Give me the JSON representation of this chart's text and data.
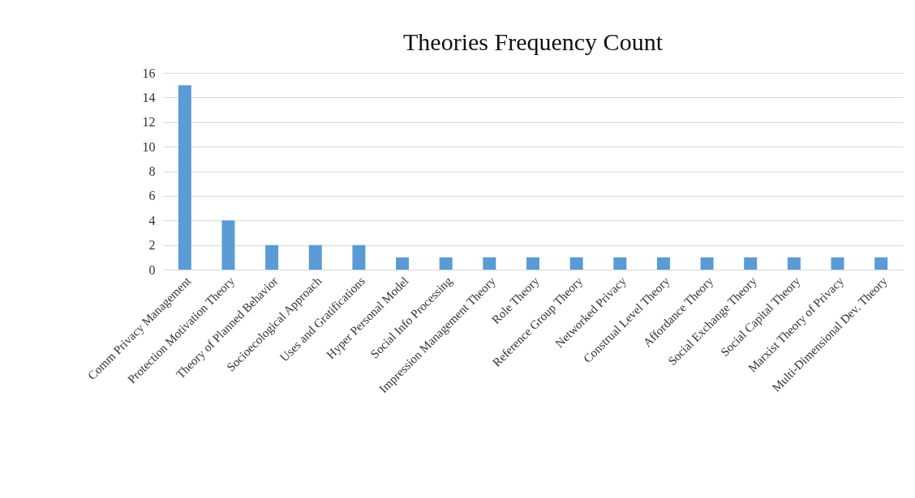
{
  "chart_data": {
    "type": "bar",
    "title": "Theories Frequency Count",
    "categories": [
      "Comm Privacy Management",
      "Protection Motivation Theory",
      "Theory of Planned Behavior",
      "Socioecological Approach",
      "Uses and Gratifications",
      "Hyper Personal Model",
      "Social Info Processing",
      "Impression Management Theory",
      "Role Theory",
      "Reference Group Theory",
      "Networked Privacy",
      "Construal Level Theory",
      "Affordance Theory",
      "Social Exchange Theory",
      "Social Capital Theory",
      "Marxist Theory of Privacy",
      "Multi-Dimensional Dev. Theory"
    ],
    "values": [
      15,
      4,
      2,
      2,
      2,
      1,
      1,
      1,
      1,
      1,
      1,
      1,
      1,
      1,
      1,
      1,
      1
    ],
    "color": "#5b9bd5",
    "ylim": [
      0,
      16
    ],
    "yticks": [
      0,
      2,
      4,
      6,
      8,
      10,
      12,
      14,
      16
    ],
    "grid": "y"
  }
}
